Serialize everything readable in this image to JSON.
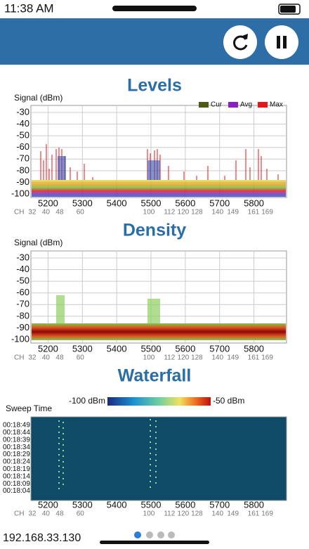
{
  "status_bar": {
    "time": "11:38 AM"
  },
  "frequency_axis": {
    "xlim": [
      5150,
      5895
    ],
    "xticks": [
      5200,
      5300,
      5400,
      5500,
      5600,
      5700,
      5800
    ],
    "channel_label": "CH",
    "channels": [
      32,
      40,
      48,
      60,
      100,
      112,
      120,
      128,
      140,
      149,
      161,
      169
    ]
  },
  "levels": {
    "title": "Levels",
    "y_label": "Signal (dBm)",
    "ylim": [
      -103,
      -24
    ],
    "yticks": [
      -30,
      -40,
      -50,
      -60,
      -70,
      -80,
      -90,
      -100
    ],
    "legend": [
      {
        "name": "Cur",
        "color": "#4d5a12"
      },
      {
        "name": "Avg",
        "color": "#8b1fc4"
      },
      {
        "name": "Max",
        "color": "#e8141a"
      }
    ]
  },
  "density": {
    "title": "Density",
    "y_label": "Signal (dBm)",
    "ylim": [
      -103,
      -24
    ],
    "yticks": [
      -30,
      -40,
      -50,
      -60,
      -70,
      -80,
      -90,
      -100
    ]
  },
  "waterfall": {
    "title": "Waterfall",
    "scale_min_label": "-100 dBm",
    "scale_max_label": "-50 dBm",
    "y_label": "Sweep Time",
    "times": [
      "00:18:49",
      "00:18:44",
      "00:18:39",
      "00:18:34",
      "00:18:29",
      "00:18:24",
      "00:18:19",
      "00:18:14",
      "00:18:09",
      "00:18:04"
    ]
  },
  "footer": {
    "address": "192.168.33.130"
  }
}
